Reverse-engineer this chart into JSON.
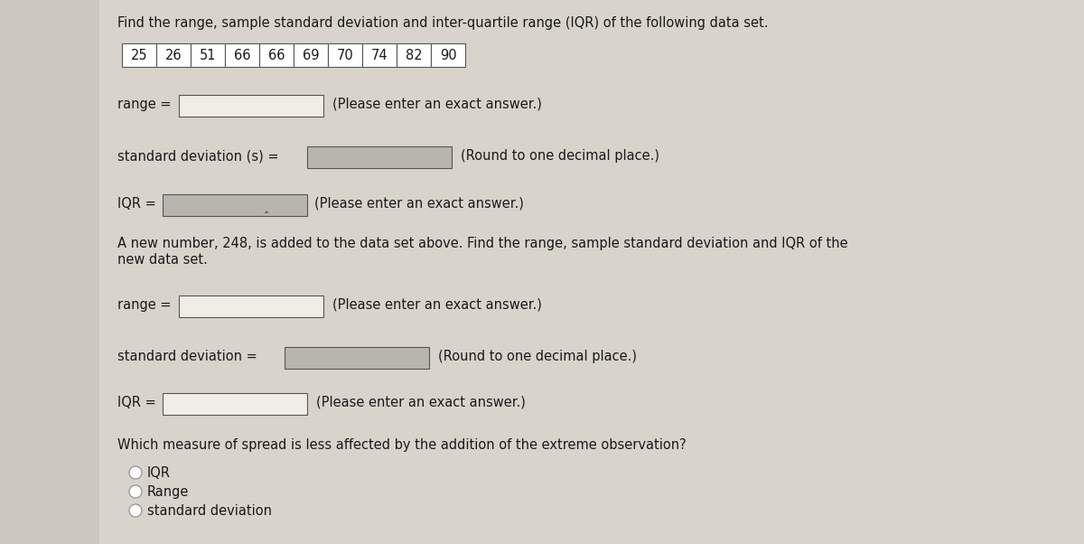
{
  "title": "Find the range, sample standard deviation and inter-quartile range (IQR) of the following data set.",
  "data_values": [
    "25",
    "26",
    "51",
    "66",
    "66",
    "69",
    "70",
    "74",
    "82",
    "90"
  ],
  "section1": {
    "range_label": "range =",
    "range_note": "(Please enter an exact answer.)",
    "sd_label": "standard deviation (s) =",
    "sd_note": "(Round to one decimal place.)",
    "iqr_label": "IQR =",
    "iqr_note": "(Please enter an exact answer.)"
  },
  "section2_intro_line1": "A new number, 248, is added to the data set above. Find the range, sample standard deviation and IQR of the",
  "section2_intro_line2": "new data set.",
  "section2": {
    "range_label": "range =",
    "range_note": "(Please enter an exact answer.)",
    "sd_label": "standard deviation =",
    "sd_note": "(Round to one decimal place.)",
    "iqr_label": "IQR =",
    "iqr_note": "(Please enter an exact answer.)"
  },
  "which_label": "Which measure of spread is less affected by the addition of the extreme observation?",
  "options": [
    "IQR",
    "Range",
    "standard deviation"
  ],
  "bg_color_left": "#c8c5be",
  "bg_color_right": "#ccc8c0",
  "content_bg": "#ccc8c0",
  "white_panel": "#e8e5de",
  "input_box_white": "#f0ede6",
  "input_box_shade": "#b8b5ae",
  "text_color": "#1a1a1a",
  "font_size": 10.5,
  "cell_font_size": 10.5
}
